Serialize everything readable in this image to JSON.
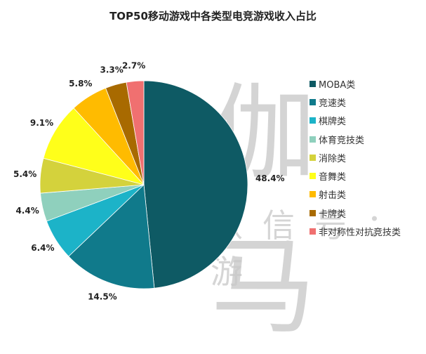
{
  "chart_data": {
    "type": "pie",
    "title": "TOP50移动游戏中各类型电竞游戏收入占比",
    "legend_position": "right",
    "slices": [
      {
        "name": "MOBA类",
        "value": 48.4,
        "label": "48.4%",
        "color": "#0e5a64"
      },
      {
        "name": "竞速类",
        "value": 14.5,
        "label": "14.5%",
        "color": "#107a8b"
      },
      {
        "name": "棋牌类",
        "value": 6.4,
        "label": "6.4%",
        "color": "#1cb3c8"
      },
      {
        "name": "体育竞技类",
        "value": 4.4,
        "label": "4.4%",
        "color": "#8fd0bd"
      },
      {
        "name": "消除类",
        "value": 5.4,
        "label": "5.4%",
        "color": "#d4d23c"
      },
      {
        "name": "音舞类",
        "value": 9.1,
        "label": "9.1%",
        "color": "#ffff1a"
      },
      {
        "name": "射击类",
        "value": 5.8,
        "label": "5.8%",
        "color": "#ffbb00"
      },
      {
        "name": "卡牌类",
        "value": 3.3,
        "label": "3.3%",
        "color": "#a86a00"
      },
      {
        "name": "非对称性对抗竞技类",
        "value": 2.7,
        "label": "2.7%",
        "color": "#f07070"
      }
    ]
  },
  "watermark": {
    "line1": "伽马",
    "line2": "微信号：游"
  }
}
